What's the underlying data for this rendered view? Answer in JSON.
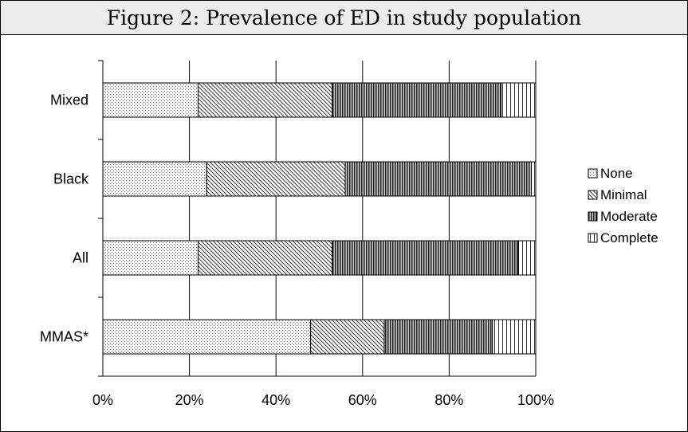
{
  "title": "Figure 2: Prevalence of ED in study population",
  "chart_data": {
    "type": "bar",
    "orientation": "horizontal",
    "stacked": "percent",
    "categories": [
      "Mixed",
      "Black",
      "All",
      "MMAS*"
    ],
    "series": [
      {
        "name": "None",
        "values": [
          22,
          24,
          22,
          48
        ]
      },
      {
        "name": "Minimal",
        "values": [
          31,
          32,
          31,
          17
        ]
      },
      {
        "name": "Moderate",
        "values": [
          39,
          43,
          43,
          25
        ]
      },
      {
        "name": "Complete",
        "values": [
          8,
          1,
          4,
          10
        ]
      }
    ],
    "xlim": [
      0,
      100
    ],
    "xticks": [
      "0%",
      "20%",
      "40%",
      "60%",
      "80%",
      "100%"
    ],
    "grid": "vertical",
    "legend": "right"
  }
}
